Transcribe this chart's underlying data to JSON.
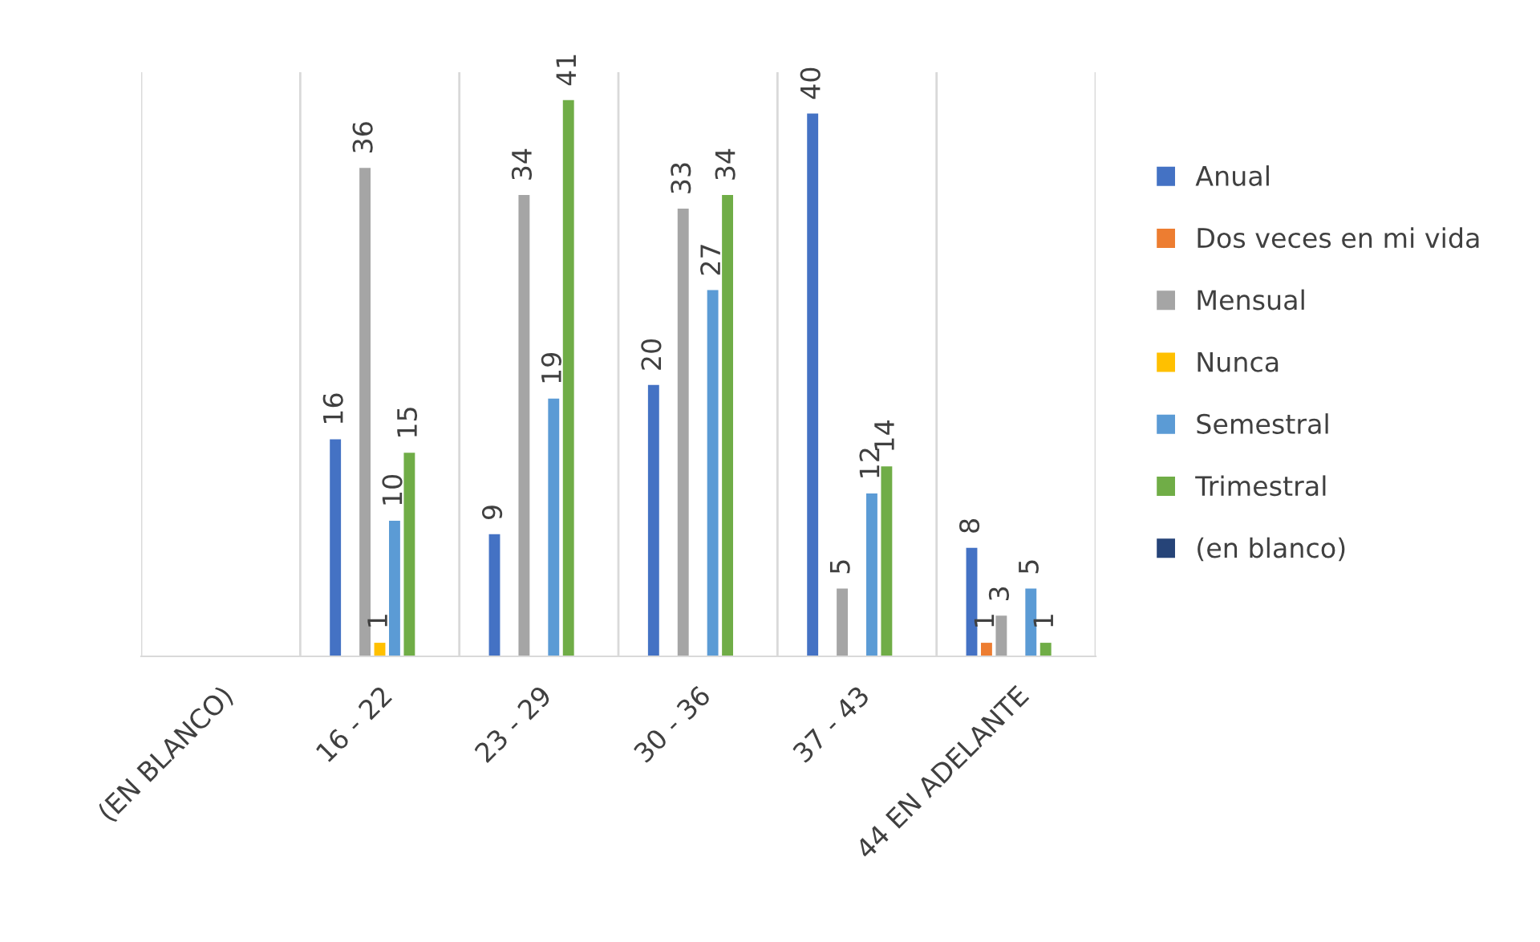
{
  "chart_data": {
    "type": "bar",
    "categories": [
      "(EN BLANCO)",
      "16 - 22",
      "23 - 29",
      "30 - 36",
      "37 - 43",
      "44 EN ADELANTE"
    ],
    "series": [
      {
        "name": "Anual",
        "color": "#4472c4",
        "values": [
          null,
          16,
          9,
          20,
          40,
          8
        ]
      },
      {
        "name": "Dos veces en mi vida",
        "color": "#ed7d31",
        "values": [
          null,
          null,
          null,
          null,
          null,
          1
        ]
      },
      {
        "name": "Mensual",
        "color": "#a5a5a5",
        "values": [
          null,
          36,
          34,
          33,
          5,
          3
        ]
      },
      {
        "name": "Nunca",
        "color": "#ffc000",
        "values": [
          null,
          1,
          null,
          null,
          null,
          null
        ]
      },
      {
        "name": "Semestral",
        "color": "#5b9bd5",
        "values": [
          null,
          10,
          19,
          27,
          12,
          5
        ]
      },
      {
        "name": "Trimestral",
        "color": "#70ad47",
        "values": [
          null,
          15,
          41,
          34,
          14,
          1
        ]
      },
      {
        "name": "(en blanco)",
        "color": "#264478",
        "values": [
          null,
          null,
          null,
          null,
          null,
          null
        ]
      }
    ],
    "data_labels": true,
    "grid": "x",
    "legend": "right"
  }
}
